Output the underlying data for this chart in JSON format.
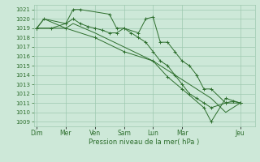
{
  "xlabel": "Pression niveau de la mer( hPa )",
  "ylim": [
    1008.5,
    1021.5
  ],
  "yticks": [
    1009,
    1010,
    1011,
    1012,
    1013,
    1014,
    1015,
    1016,
    1017,
    1018,
    1019,
    1020,
    1021
  ],
  "bg_color": "#cde8d8",
  "grid_color": "#9fc9b0",
  "line_color": "#2d6e2d",
  "day_labels": [
    "Dim",
    "Mer",
    "Ven",
    "Sam",
    "Lun",
    "Mar",
    "Jeu"
  ],
  "day_positions": [
    0.0,
    2.0,
    4.0,
    6.0,
    8.0,
    10.0,
    14.0
  ],
  "xlim": [
    -0.2,
    15.0
  ],
  "series1_x": [
    0,
    0.5,
    2.0,
    2.5,
    3.0,
    5.0,
    5.5,
    6.0,
    7.0,
    7.5,
    8.0,
    8.5,
    9.0,
    9.5,
    10.0,
    10.5,
    11.0,
    11.5,
    12.0,
    13.0,
    13.5,
    14.0
  ],
  "series1_y": [
    1019.0,
    1020.0,
    1019.5,
    1021.0,
    1021.0,
    1020.5,
    1019.0,
    1019.0,
    1018.5,
    1020.0,
    1020.2,
    1017.5,
    1017.5,
    1016.5,
    1015.5,
    1015.0,
    1014.0,
    1012.5,
    1012.5,
    1011.0,
    1011.2,
    1011.0
  ],
  "series2_x": [
    0,
    1.0,
    2.0,
    2.5,
    3.0,
    3.5,
    4.0,
    4.5,
    5.0,
    5.5,
    6.0,
    6.5,
    7.0,
    7.5,
    8.0,
    8.5,
    9.0,
    9.5,
    10.0,
    10.5,
    11.0,
    11.5,
    12.0,
    13.0,
    14.0
  ],
  "series2_y": [
    1019.0,
    1019.0,
    1019.5,
    1020.0,
    1019.5,
    1019.2,
    1019.0,
    1018.8,
    1018.5,
    1018.5,
    1019.0,
    1018.5,
    1018.0,
    1017.5,
    1016.5,
    1015.5,
    1015.0,
    1014.0,
    1013.0,
    1012.0,
    1011.5,
    1011.0,
    1010.5,
    1011.0,
    1011.0
  ],
  "series3_x": [
    0,
    0.5,
    2.0,
    2.5,
    4.0,
    6.0,
    8.0,
    10.0,
    12.0,
    13.0,
    14.0
  ],
  "series3_y": [
    1019.0,
    1020.0,
    1019.0,
    1019.5,
    1018.5,
    1017.0,
    1015.5,
    1013.5,
    1011.5,
    1010.0,
    1011.0
  ],
  "series4_x": [
    0,
    2.0,
    4.0,
    6.0,
    8.0,
    9.0,
    10.0,
    11.5,
    12.0,
    13.0,
    14.0
  ],
  "series4_y": [
    1019.0,
    1019.0,
    1018.0,
    1016.5,
    1015.5,
    1013.8,
    1012.5,
    1010.5,
    1009.0,
    1011.5,
    1011.0
  ]
}
